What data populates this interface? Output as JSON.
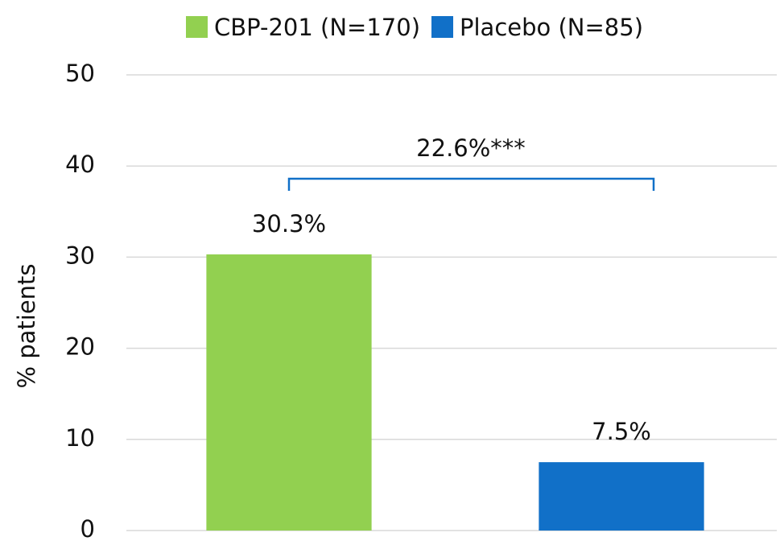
{
  "chart_data": {
    "type": "bar",
    "categories": [
      null
    ],
    "series": [
      {
        "name": "CBP-201 (N=170)",
        "color": "#92d050",
        "values": [
          30.3
        ],
        "value_labels": [
          "30.3%"
        ]
      },
      {
        "name": "Placebo (N=85)",
        "color": "#1170c8",
        "values": [
          7.5
        ],
        "value_labels": [
          "7.5%"
        ]
      }
    ],
    "ylabel": "% patients",
    "annotation": "22.6%***",
    "ylim": [
      0,
      50
    ],
    "yticks": [
      0,
      10,
      20,
      30,
      40,
      50
    ],
    "grid": true,
    "legend": "top"
  }
}
